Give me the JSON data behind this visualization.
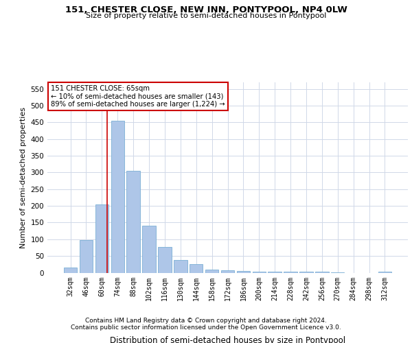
{
  "title": "151, CHESTER CLOSE, NEW INN, PONTYPOOL, NP4 0LW",
  "subtitle": "Size of property relative to semi-detached houses in Pontypool",
  "xlabel": "Distribution of semi-detached houses by size in Pontypool",
  "ylabel": "Number of semi-detached properties",
  "categories": [
    "32sqm",
    "46sqm",
    "60sqm",
    "74sqm",
    "88sqm",
    "102sqm",
    "116sqm",
    "130sqm",
    "144sqm",
    "158sqm",
    "172sqm",
    "186sqm",
    "200sqm",
    "214sqm",
    "228sqm",
    "242sqm",
    "256sqm",
    "270sqm",
    "284sqm",
    "298sqm",
    "312sqm"
  ],
  "values": [
    15,
    98,
    205,
    455,
    305,
    140,
    78,
    38,
    25,
    10,
    7,
    5,
    4,
    3,
    4,
    3,
    3,
    1,
    0,
    0,
    3
  ],
  "bar_color": "#aec6e8",
  "bar_edgecolor": "#7bafd4",
  "annotation_text_line1": "151 CHESTER CLOSE: 65sqm",
  "annotation_text_line2": "← 10% of semi-detached houses are smaller (143)",
  "annotation_text_line3": "89% of semi-detached houses are larger (1,224) →",
  "annotation_box_facecolor": "#ffffff",
  "annotation_box_edgecolor": "#cc0000",
  "red_line_color": "#cc0000",
  "ylim": [
    0,
    570
  ],
  "yticks": [
    0,
    50,
    100,
    150,
    200,
    250,
    300,
    350,
    400,
    450,
    500,
    550
  ],
  "footer_line1": "Contains HM Land Registry data © Crown copyright and database right 2024.",
  "footer_line2": "Contains public sector information licensed under the Open Government Licence v3.0.",
  "bg_color": "#ffffff",
  "grid_color": "#d0d8e8"
}
